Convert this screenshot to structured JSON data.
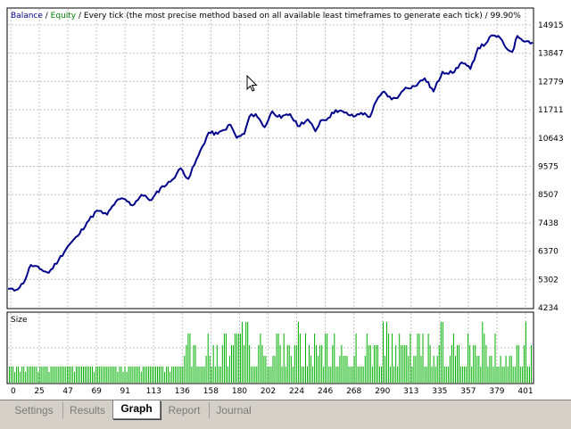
{
  "header": {
    "balance_label": "Balance",
    "separator1": " / ",
    "equity_label": "Equity",
    "description": " / Every tick (the most precise method based on all available least timeframes to generate each tick) / 99.90%"
  },
  "colors": {
    "balance": "#00008b",
    "equity": "#008000",
    "size_bars": "#00b000",
    "grid": "#c0c0c0"
  },
  "size_panel": {
    "label": "Size"
  },
  "chart_data": [
    {
      "type": "line",
      "title": "",
      "series": [
        {
          "name": "Balance",
          "x": [
            0,
            5,
            12,
            18,
            25,
            32,
            40,
            47,
            55,
            62,
            70,
            78,
            85,
            91,
            98,
            105,
            113,
            120,
            128,
            136,
            142,
            150,
            158,
            165,
            170,
            175,
            180,
            186,
            190,
            195,
            202,
            208,
            215,
            222,
            228,
            236,
            242,
            246,
            252,
            258,
            265,
            272,
            278,
            285,
            290,
            296,
            302,
            308,
            313,
            320,
            328,
            335,
            342,
            350,
            357,
            364,
            370,
            376,
            379,
            386,
            392,
            397,
            401,
            408,
            413
          ],
          "values": [
            4950,
            4880,
            5150,
            5850,
            5700,
            5550,
            6050,
            6550,
            6950,
            7450,
            7900,
            7750,
            8250,
            8350,
            8100,
            8500,
            8300,
            8750,
            9000,
            9500,
            9100,
            10000,
            10850,
            10800,
            10950,
            11150,
            10650,
            10800,
            11450,
            11550,
            11050,
            11650,
            11400,
            11550,
            11100,
            11350,
            10900,
            11300,
            11400,
            11700,
            11600,
            11450,
            11600,
            11450,
            12050,
            12400,
            12100,
            12250,
            12550,
            12600,
            12900,
            12400,
            13150,
            13100,
            13500,
            13250,
            14050,
            14200,
            14450,
            14500,
            14050,
            13900,
            14500,
            14300,
            14250
          ]
        }
      ],
      "xlim": [
        0,
        413
      ],
      "ylim": [
        4234,
        15450
      ],
      "x_ticks": [
        "0",
        "25",
        "47",
        "69",
        "91",
        "113",
        "136",
        "158",
        "180",
        "202",
        "224",
        "246",
        "268",
        "290",
        "313",
        "335",
        "357",
        "379",
        "401"
      ],
      "y_ticks": [
        "14915",
        "13847",
        "12779",
        "11711",
        "10643",
        "9575",
        "8507",
        "7438",
        "6370",
        "5302",
        "4234"
      ],
      "grid": true
    },
    {
      "type": "bar",
      "title": "Size",
      "seed": 7,
      "bar_count": 290
    }
  ],
  "tabs": [
    {
      "id": "settings",
      "label": "Settings",
      "active": false
    },
    {
      "id": "results",
      "label": "Results",
      "active": false
    },
    {
      "id": "graph",
      "label": "Graph",
      "active": true
    },
    {
      "id": "report",
      "label": "Report",
      "active": false
    },
    {
      "id": "journal",
      "label": "Journal",
      "active": false
    }
  ]
}
